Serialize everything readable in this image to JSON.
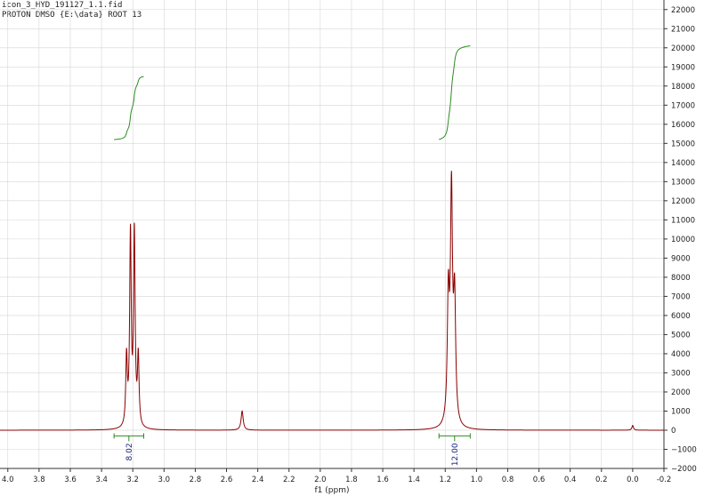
{
  "header": {
    "line1": "icon_3_HYD_191127_1.1.fid",
    "line2": "PROTON DMSO {E:\\data} ROOT 13"
  },
  "colors": {
    "spectrum": "#8b0000",
    "integral_curve": "#2e8b22",
    "integral_bar": "#2e8b22",
    "integral_label": "#1a237e",
    "grid": "#d6d6d6",
    "axis": "#333333"
  },
  "chart_data": {
    "type": "line",
    "title": "",
    "xlabel": "f1 (ppm)",
    "ylabel": "",
    "xlim": [
      4.05,
      -0.2
    ],
    "ylim": [
      -2000,
      22500
    ],
    "x_reversed": true,
    "grid": true,
    "x_ticks": [
      4.0,
      3.8,
      3.6,
      3.4,
      3.2,
      3.0,
      2.8,
      2.6,
      2.4,
      2.2,
      2.0,
      1.8,
      1.6,
      1.4,
      1.2,
      1.0,
      0.8,
      0.6,
      0.4,
      0.2,
      0.0,
      -0.2
    ],
    "x_tick_labels": [
      "4.0",
      "3.8",
      "3.6",
      "3.4",
      "3.2",
      "3.0",
      "2.8",
      "2.6",
      "2.4",
      "2.2",
      "2.0",
      "1.8",
      "1.6",
      "1.4",
      "1.2",
      "1.0",
      "0.8",
      "0.6",
      "0.4",
      "0.2",
      "0.0",
      "-0.2"
    ],
    "y_ticks": [
      22000,
      21000,
      20000,
      19000,
      18000,
      17000,
      16000,
      15000,
      14000,
      13000,
      12000,
      11000,
      10000,
      9000,
      8000,
      7000,
      6000,
      5000,
      4000,
      3000,
      2000,
      1000,
      0,
      -1000,
      -2000
    ],
    "y_tick_labels": [
      "22000",
      "21000",
      "20000",
      "19000",
      "18000",
      "17000",
      "16000",
      "15000",
      "14000",
      "13000",
      "12000",
      "11000",
      "10000",
      "9000",
      "8000",
      "7000",
      "6000",
      "5000",
      "4000",
      "3000",
      "2000",
      "1000",
      "0",
      "−1000",
      "−2000"
    ],
    "series": [
      {
        "peaks": [
          {
            "ppm": 3.24,
            "height": 3600,
            "width": 0.006
          },
          {
            "ppm": 3.215,
            "height": 10000,
            "width": 0.006
          },
          {
            "ppm": 3.19,
            "height": 10100,
            "width": 0.006
          },
          {
            "ppm": 3.165,
            "height": 3600,
            "width": 0.006
          },
          {
            "ppm": 2.5,
            "height": 1000,
            "width": 0.008
          },
          {
            "ppm": 1.18,
            "height": 6500,
            "width": 0.008
          },
          {
            "ppm": 1.16,
            "height": 11800,
            "width": 0.008
          },
          {
            "ppm": 1.14,
            "height": 6300,
            "width": 0.008
          },
          {
            "ppm": 0.0,
            "height": 250,
            "width": 0.006
          }
        ]
      }
    ],
    "integrals": [
      {
        "from": 3.32,
        "to": 3.13,
        "value": "8.02",
        "curve_start": 15200,
        "curve_end": 18500
      },
      {
        "from": 1.24,
        "to": 1.04,
        "value": "12.00",
        "curve_start": 15200,
        "curve_end": 20100
      }
    ]
  }
}
